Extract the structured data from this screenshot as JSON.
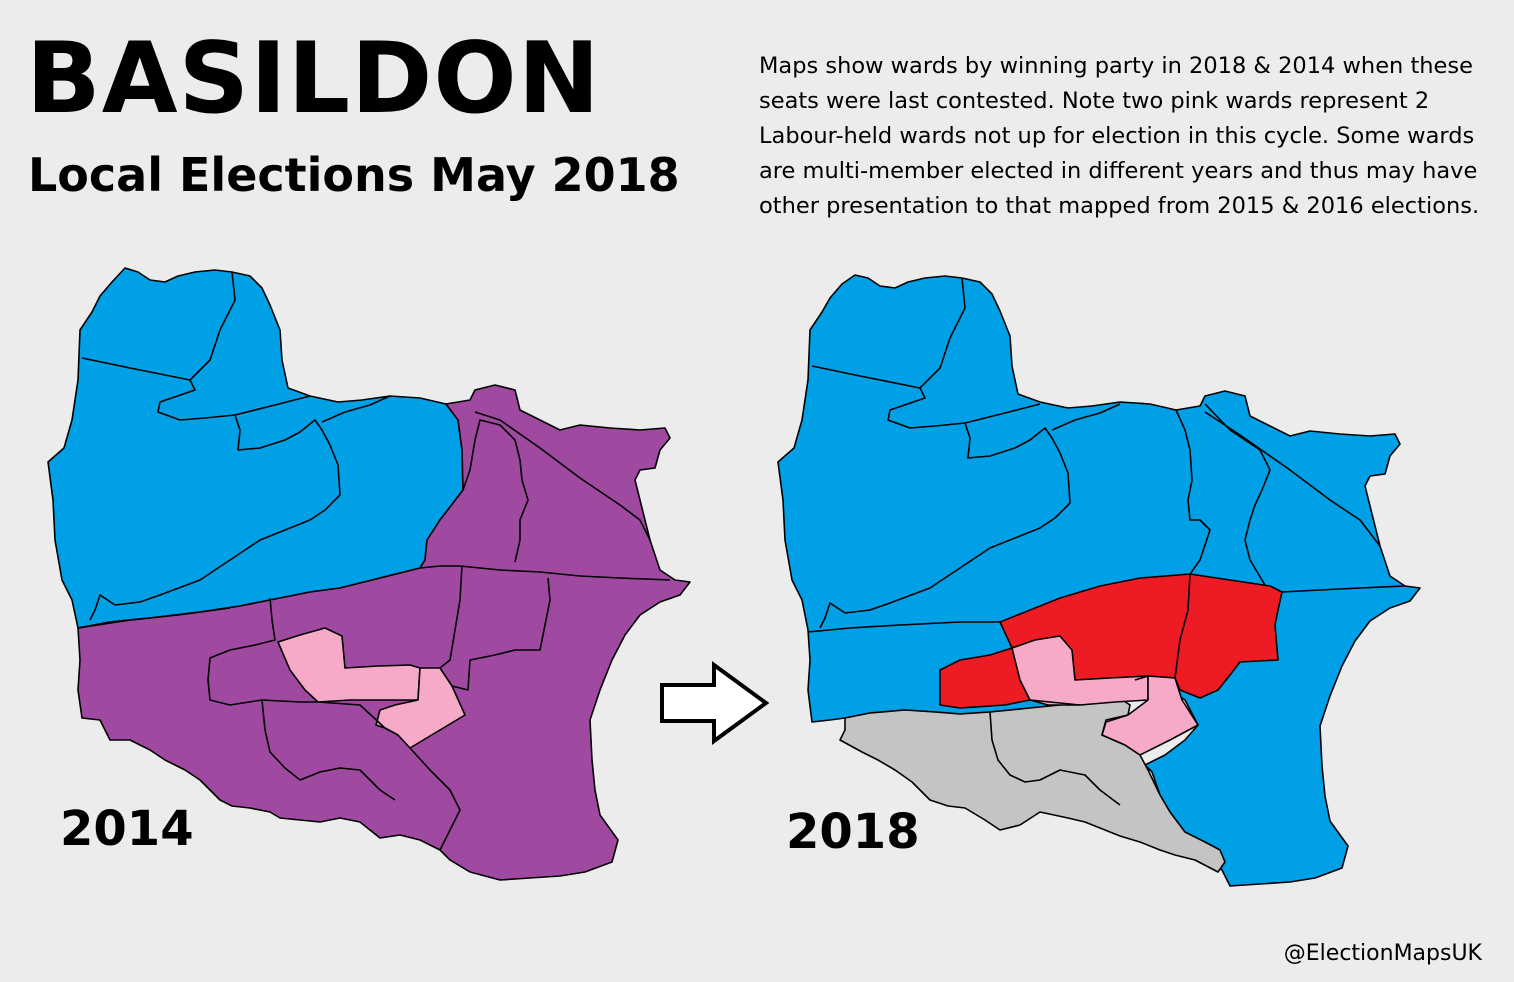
{
  "title": "BASILDON",
  "subtitle": "Local Elections May 2018",
  "note_lines": [
    "Maps show wards by winning party in 2018 & 2014 when these",
    "seats were last contested. Note two pink wards represent 2",
    "Labour-held wards not up for election in this cycle. Some wards",
    "are multi-member elected in different years and thus may have",
    "other presentation to that mapped from 2015 & 2016 elections."
  ],
  "maps": [
    {
      "year_label": "2014",
      "arrow_icon": "none"
    },
    {
      "year_label": "2018"
    }
  ],
  "credit": "@ElectionMapsUK",
  "colors": {
    "background": "#ececec",
    "conservative": "#00a0e6",
    "ukip": "#a049a0",
    "labour": "#ed1c24",
    "labour_not_up": "#f7a9c8",
    "independent_other": "#c4c4c4",
    "outline": "#000000"
  },
  "arrow": {
    "icon": "right-arrow-icon"
  }
}
